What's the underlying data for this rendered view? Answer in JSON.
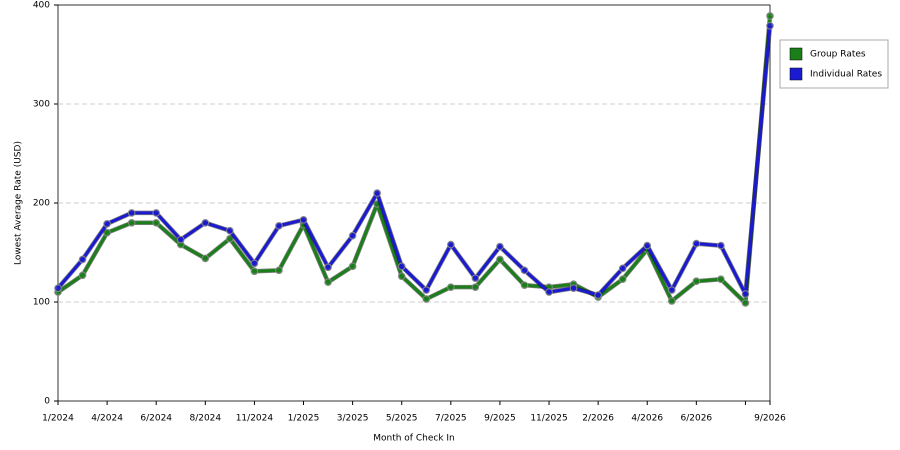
{
  "chart_data": {
    "type": "line",
    "x_label": "Month of Check In",
    "y_label": "Lowest Average Rate (USD)",
    "categories": [
      "1/2024",
      null,
      "4/2024",
      null,
      "6/2024",
      null,
      "8/2024",
      null,
      "11/2024",
      null,
      "1/2025",
      null,
      "3/2025",
      null,
      "5/2025",
      null,
      "7/2025",
      null,
      "9/2025",
      null,
      "11/2025",
      null,
      "2/2026",
      null,
      "4/2026",
      null,
      "6/2026",
      null,
      null,
      "9/2026"
    ],
    "series": [
      {
        "name": "Group Rates",
        "color": "#1a7f1a",
        "values": [
          110,
          127,
          170,
          180,
          180,
          158,
          144,
          164,
          131,
          132,
          178,
          120,
          136,
          199,
          126,
          103,
          115,
          115,
          143,
          117,
          115,
          118,
          105,
          123,
          153,
          101,
          121,
          123,
          99,
          389
        ]
      },
      {
        "name": "Individual Rates",
        "color": "#1a1ad0",
        "values": [
          114,
          143,
          179,
          190,
          190,
          163,
          180,
          172,
          139,
          177,
          183,
          135,
          167,
          210,
          136,
          112,
          158,
          124,
          156,
          132,
          110,
          114,
          107,
          134,
          157,
          112,
          159,
          157,
          108,
          379
        ]
      }
    ],
    "ylim": [
      0,
      400
    ],
    "yticks": [
      0,
      100,
      200,
      300,
      400
    ],
    "grid": true,
    "legend": "right"
  }
}
